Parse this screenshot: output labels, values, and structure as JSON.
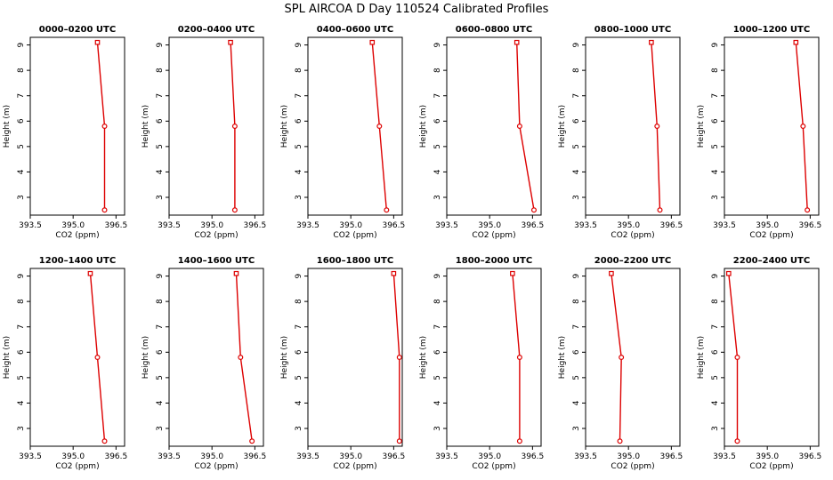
{
  "title": "SPL AIRCOA D  Day 110524  Calibrated Profiles",
  "colors": {
    "series": "#dd0000",
    "axis": "#000000"
  },
  "chart_data": [
    {
      "type": "line",
      "title": "0000–0200 UTC",
      "xlabel": "CO2 (ppm)",
      "ylabel": "Height (m)",
      "xlim": [
        393.5,
        396.8
      ],
      "ylim": [
        2.3,
        9.3
      ],
      "xticks": [
        "393.5",
        "395.0",
        "396.5"
      ],
      "yticks": [
        "3",
        "4",
        "5",
        "6",
        "7",
        "8",
        "9"
      ],
      "points": [
        {
          "x": 395.85,
          "y": 9.1
        },
        {
          "x": 396.1,
          "y": 5.8
        },
        {
          "x": 396.1,
          "y": 2.5
        }
      ]
    },
    {
      "type": "line",
      "title": "0200–0400 UTC",
      "xlabel": "CO2 (ppm)",
      "ylabel": "Height (m)",
      "xlim": [
        393.5,
        396.8
      ],
      "ylim": [
        2.3,
        9.3
      ],
      "xticks": [
        "393.5",
        "395.0",
        "396.5"
      ],
      "yticks": [
        "3",
        "4",
        "5",
        "6",
        "7",
        "8",
        "9"
      ],
      "points": [
        {
          "x": 395.65,
          "y": 9.1
        },
        {
          "x": 395.8,
          "y": 5.8
        },
        {
          "x": 395.8,
          "y": 2.5
        }
      ]
    },
    {
      "type": "line",
      "title": "0400–0600 UTC",
      "xlabel": "CO2 (ppm)",
      "ylabel": "Height (m)",
      "xlim": [
        393.5,
        396.8
      ],
      "ylim": [
        2.3,
        9.3
      ],
      "xticks": [
        "393.5",
        "395.0",
        "396.5"
      ],
      "yticks": [
        "3",
        "4",
        "5",
        "6",
        "7",
        "8",
        "9"
      ],
      "points": [
        {
          "x": 395.75,
          "y": 9.1
        },
        {
          "x": 396.0,
          "y": 5.8
        },
        {
          "x": 396.25,
          "y": 2.5
        }
      ]
    },
    {
      "type": "line",
      "title": "0600–0800 UTC",
      "xlabel": "CO2 (ppm)",
      "ylabel": "Height (m)",
      "xlim": [
        393.5,
        396.8
      ],
      "ylim": [
        2.3,
        9.3
      ],
      "xticks": [
        "393.5",
        "395.0",
        "396.5"
      ],
      "yticks": [
        "3",
        "4",
        "5",
        "6",
        "7",
        "8",
        "9"
      ],
      "points": [
        {
          "x": 395.95,
          "y": 9.1
        },
        {
          "x": 396.05,
          "y": 5.8
        },
        {
          "x": 396.55,
          "y": 2.5
        }
      ]
    },
    {
      "type": "line",
      "title": "0800–1000 UTC",
      "xlabel": "CO2 (ppm)",
      "ylabel": "Height (m)",
      "xlim": [
        393.5,
        396.8
      ],
      "ylim": [
        2.3,
        9.3
      ],
      "xticks": [
        "393.5",
        "395.0",
        "396.5"
      ],
      "yticks": [
        "3",
        "4",
        "5",
        "6",
        "7",
        "8",
        "9"
      ],
      "points": [
        {
          "x": 395.8,
          "y": 9.1
        },
        {
          "x": 396.0,
          "y": 5.8
        },
        {
          "x": 396.1,
          "y": 2.5
        }
      ]
    },
    {
      "type": "line",
      "title": "1000–1200 UTC",
      "xlabel": "CO2 (ppm)",
      "ylabel": "Height (m)",
      "xlim": [
        393.5,
        396.8
      ],
      "ylim": [
        2.3,
        9.3
      ],
      "xticks": [
        "393.5",
        "395.0",
        "396.5"
      ],
      "yticks": [
        "3",
        "4",
        "5",
        "6",
        "7",
        "8",
        "9"
      ],
      "points": [
        {
          "x": 396.0,
          "y": 9.1
        },
        {
          "x": 396.25,
          "y": 5.8
        },
        {
          "x": 396.4,
          "y": 2.5
        }
      ]
    },
    {
      "type": "line",
      "title": "1200–1400 UTC",
      "xlabel": "CO2 (ppm)",
      "ylabel": "Height (m)",
      "xlim": [
        393.5,
        396.8
      ],
      "ylim": [
        2.3,
        9.3
      ],
      "xticks": [
        "393.5",
        "395.0",
        "396.5"
      ],
      "yticks": [
        "3",
        "4",
        "5",
        "6",
        "7",
        "8",
        "9"
      ],
      "points": [
        {
          "x": 395.6,
          "y": 9.1
        },
        {
          "x": 395.85,
          "y": 5.8
        },
        {
          "x": 396.1,
          "y": 2.5
        }
      ]
    },
    {
      "type": "line",
      "title": "1400–1600 UTC",
      "xlabel": "CO2 (ppm)",
      "ylabel": "Height (m)",
      "xlim": [
        393.5,
        396.8
      ],
      "ylim": [
        2.3,
        9.3
      ],
      "xticks": [
        "393.5",
        "395.0",
        "396.5"
      ],
      "yticks": [
        "3",
        "4",
        "5",
        "6",
        "7",
        "8",
        "9"
      ],
      "points": [
        {
          "x": 395.85,
          "y": 9.1
        },
        {
          "x": 396.0,
          "y": 5.8
        },
        {
          "x": 396.4,
          "y": 2.5
        }
      ]
    },
    {
      "type": "line",
      "title": "1600–1800 UTC",
      "xlabel": "CO2 (ppm)",
      "ylabel": "Height (m)",
      "xlim": [
        393.5,
        396.8
      ],
      "ylim": [
        2.3,
        9.3
      ],
      "xticks": [
        "393.5",
        "395.0",
        "396.5"
      ],
      "yticks": [
        "3",
        "4",
        "5",
        "6",
        "7",
        "8",
        "9"
      ],
      "points": [
        {
          "x": 396.5,
          "y": 9.1
        },
        {
          "x": 396.7,
          "y": 5.8
        },
        {
          "x": 396.7,
          "y": 2.5
        }
      ]
    },
    {
      "type": "line",
      "title": "1800–2000 UTC",
      "xlabel": "CO2 (ppm)",
      "ylabel": "Height (m)",
      "xlim": [
        393.5,
        396.8
      ],
      "ylim": [
        2.3,
        9.3
      ],
      "xticks": [
        "393.5",
        "395.0",
        "396.5"
      ],
      "yticks": [
        "3",
        "4",
        "5",
        "6",
        "7",
        "8",
        "9"
      ],
      "points": [
        {
          "x": 395.8,
          "y": 9.1
        },
        {
          "x": 396.05,
          "y": 5.8
        },
        {
          "x": 396.05,
          "y": 2.5
        }
      ]
    },
    {
      "type": "line",
      "title": "2000–2200 UTC",
      "xlabel": "CO2 (ppm)",
      "ylabel": "Height (m)",
      "xlim": [
        393.5,
        396.8
      ],
      "ylim": [
        2.3,
        9.3
      ],
      "xticks": [
        "393.5",
        "395.0",
        "396.5"
      ],
      "yticks": [
        "3",
        "4",
        "5",
        "6",
        "7",
        "8",
        "9"
      ],
      "points": [
        {
          "x": 394.4,
          "y": 9.1
        },
        {
          "x": 394.75,
          "y": 5.8
        },
        {
          "x": 394.7,
          "y": 2.5
        }
      ]
    },
    {
      "type": "line",
      "title": "2200–2400 UTC",
      "xlabel": "CO2 (ppm)",
      "ylabel": "Height (m)",
      "xlim": [
        393.5,
        396.8
      ],
      "ylim": [
        2.3,
        9.3
      ],
      "xticks": [
        "393.5",
        "395.0",
        "396.5"
      ],
      "yticks": [
        "3",
        "4",
        "5",
        "6",
        "7",
        "8",
        "9"
      ],
      "points": [
        {
          "x": 393.65,
          "y": 9.1
        },
        {
          "x": 393.95,
          "y": 5.8
        },
        {
          "x": 393.95,
          "y": 2.5
        }
      ]
    }
  ]
}
